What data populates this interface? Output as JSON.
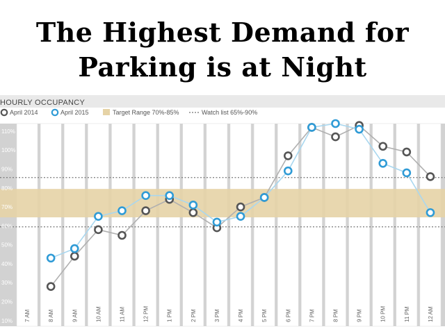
{
  "title_lines": [
    "The Highest Demand for",
    "Parking is at Night"
  ],
  "chart_data": {
    "type": "line",
    "subtitle": "HOURLY OCCUPANCY",
    "categories": [
      "7 AM",
      "8 AM",
      "9 AM",
      "10 AM",
      "11 AM",
      "12 PM",
      "1 PM",
      "2 PM",
      "3 PM",
      "4 PM",
      "5 PM",
      "6 PM",
      "7 PM",
      "8 PM",
      "9 PM",
      "10 PM",
      "11 PM",
      "12 AM"
    ],
    "yticks": [
      "10%",
      "20%",
      "30%",
      "40%",
      "50%",
      "60%",
      "70%",
      "80%",
      "90%",
      "100%",
      "110%"
    ],
    "ylim": [
      7,
      114
    ],
    "series": [
      {
        "name": "April 2014",
        "color": "#555555",
        "line_color": "#b0b0b0",
        "values": [
          null,
          28,
          44,
          58,
          55,
          68,
          74,
          67,
          59,
          70,
          75,
          97,
          112,
          107,
          113,
          102,
          99,
          86
        ]
      },
      {
        "name": "April 2015",
        "color": "#2f9bd6",
        "line_color": "#a9d7ef",
        "values": [
          null,
          43,
          48,
          65,
          68,
          76,
          76,
          71,
          62,
          65,
          75,
          89,
          112,
          114,
          111,
          93,
          88,
          67
        ]
      }
    ],
    "target_range": {
      "label": "Target Range 70%-85%",
      "from": 64.5,
      "to": 79.5,
      "color": "#e6d3a6"
    },
    "watch_list": {
      "label": "Watch list 65%-90%",
      "from": 59.5,
      "to": 85.5
    },
    "grid": true,
    "legend": "top-left"
  },
  "colors": {
    "band_bg": "#d2d2d2",
    "col_bg": "#ffffff",
    "col_border": "#dddddd",
    "header_bg": "#e9e9e9",
    "text": "#555555"
  }
}
